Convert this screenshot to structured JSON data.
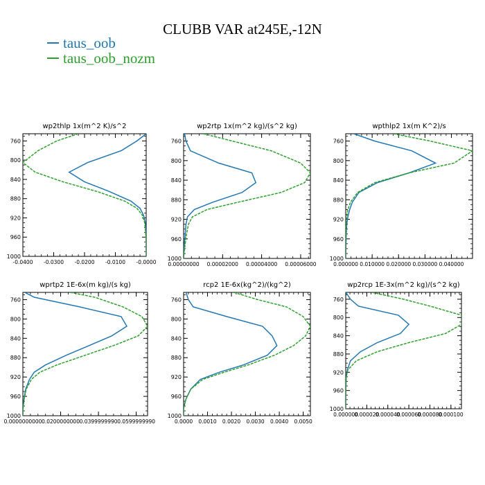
{
  "title": "CLUBB VAR at245E,-12N",
  "legend": [
    {
      "name": "taus_oob",
      "color": "#2277b3"
    },
    {
      "name": "taus_oob_nozm",
      "color": "#2ca02c"
    }
  ],
  "chart_data": [
    {
      "type": "line",
      "title": "wp2thlp   1x(m^2 K)/s^2",
      "ylim": [
        1000,
        745
      ],
      "yticks": [
        "760",
        "800",
        "840",
        "880",
        "920",
        "960",
        "1000"
      ],
      "xlim": [
        -0.04,
        0.0
      ],
      "xticks": [
        -0.04,
        -0.03,
        -0.02,
        -0.01,
        0.0
      ],
      "xticklabels": [
        "-0.0400",
        "-0.0300",
        "-0.0200",
        "-0.0100",
        "-0.0000"
      ],
      "series": [
        {
          "name": "taus_oob",
          "y": [
            745,
            760,
            780,
            805,
            825,
            845,
            865,
            885,
            900,
            915,
            930,
            950,
            970,
            990,
            1000
          ],
          "x": [
            0.0,
            -0.003,
            -0.008,
            -0.019,
            -0.025,
            -0.02,
            -0.012,
            -0.005,
            -0.002,
            -0.0008,
            -0.0003,
            -0.0001,
            0,
            0,
            0
          ]
        },
        {
          "name": "taus_oob_nozm",
          "y": [
            745,
            760,
            780,
            805,
            825,
            845,
            865,
            885,
            900,
            915,
            930,
            950,
            970,
            990,
            1000
          ],
          "x": [
            -0.022,
            -0.029,
            -0.035,
            -0.04,
            -0.036,
            -0.027,
            -0.016,
            -0.007,
            -0.003,
            -0.0012,
            -0.0005,
            -0.0002,
            0,
            0,
            0
          ]
        }
      ]
    },
    {
      "type": "line",
      "title": "wp2rtp   1x(m^2 kg)/(s^2 kg)",
      "ylim": [
        1000,
        745
      ],
      "yticks": [
        "760",
        "800",
        "840",
        "880",
        "920",
        "960",
        "1000"
      ],
      "xlim": [
        0.0,
        6.5e-05
      ],
      "xticks": [
        0,
        2e-05,
        4e-05,
        6e-05
      ],
      "xticklabels": [
        "0.00000000",
        "0.00002000",
        "0.00004000",
        "0.00006000"
      ],
      "series": [
        {
          "name": "taus_oob",
          "y": [
            745,
            760,
            780,
            805,
            825,
            845,
            865,
            885,
            900,
            915,
            930,
            950,
            970,
            990,
            1000
          ],
          "x": [
            5e-07,
            1.2e-06,
            3.5e-06,
            1.8e-05,
            3.5e-05,
            3.7e-05,
            3e-05,
            1.5e-05,
            5.5e-06,
            2e-06,
            1.2e-06,
            8e-07,
            4e-07,
            1e-07,
            0
          ]
        },
        {
          "name": "taus_oob_nozm",
          "y": [
            745,
            760,
            780,
            805,
            825,
            845,
            865,
            885,
            900,
            915,
            930,
            950,
            970,
            990,
            1000
          ],
          "x": [
            1e-05,
            2.5e-05,
            4.5e-05,
            6e-05,
            6.5e-05,
            6.2e-05,
            5e-05,
            2.8e-05,
            1.2e-05,
            4.5e-06,
            2.5e-06,
            1.5e-06,
            8e-07,
            2e-07,
            0
          ]
        }
      ]
    },
    {
      "type": "line",
      "title": "wpthlp2   1x(m K^2)/s",
      "ylim": [
        1000,
        745
      ],
      "yticks": [
        "760",
        "800",
        "840",
        "880",
        "920",
        "960",
        "1000"
      ],
      "xlim": [
        0.0,
        0.048
      ],
      "xticks": [
        0,
        0.01,
        0.02,
        0.03,
        0.04
      ],
      "xticklabels": [
        "0.000000",
        "0.010000",
        "0.020000",
        "0.030000",
        "0.040000"
      ],
      "series": [
        {
          "name": "taus_oob",
          "y": [
            745,
            760,
            780,
            805,
            825,
            845,
            865,
            885,
            900,
            915,
            930,
            950,
            970,
            990,
            1000
          ],
          "x": [
            0.003,
            0.011,
            0.025,
            0.034,
            0.024,
            0.012,
            0.005,
            0.0025,
            0.0015,
            0.0008,
            0.0004,
            0.0002,
            0.0001,
            0,
            0
          ]
        },
        {
          "name": "taus_oob_nozm",
          "y": [
            745,
            760,
            780,
            805,
            825,
            845,
            865,
            885,
            900,
            915,
            930,
            950,
            970,
            990,
            1000
          ],
          "x": [
            0.018,
            0.032,
            0.048,
            0.041,
            0.024,
            0.011,
            0.0045,
            0.0018,
            0.0008,
            0.0004,
            0.0002,
            0.0001,
            0,
            0,
            0
          ]
        }
      ]
    },
    {
      "type": "line",
      "title": "wprtp2   1E-6x(m kg)/(s kg)",
      "ylim": [
        1000,
        745
      ],
      "yticks": [
        "760",
        "800",
        "840",
        "880",
        "920",
        "960",
        "1000"
      ],
      "xlim": [
        0.0,
        0.066
      ],
      "xticks": [
        0,
        0.02,
        0.04,
        0.06
      ],
      "xticklabels": [
        "0.0000000000",
        "0.0200000000",
        "0.0399999990",
        "0.0599999990"
      ],
      "series": [
        {
          "name": "taus_oob",
          "y": [
            745,
            755,
            775,
            795,
            815,
            835,
            855,
            875,
            895,
            910,
            925,
            945,
            965,
            985,
            1000
          ],
          "x": [
            0.001,
            0.006,
            0.03,
            0.052,
            0.055,
            0.047,
            0.035,
            0.023,
            0.012,
            0.006,
            0.0035,
            0.0015,
            0.0006,
            0.0001,
            0
          ]
        },
        {
          "name": "taus_oob_nozm",
          "y": [
            745,
            755,
            775,
            795,
            815,
            835,
            855,
            875,
            895,
            910,
            925,
            945,
            965,
            985,
            1000
          ],
          "x": [
            0.025,
            0.038,
            0.053,
            0.063,
            0.066,
            0.061,
            0.048,
            0.033,
            0.018,
            0.009,
            0.0045,
            0.0018,
            0.0007,
            0.0001,
            0
          ]
        }
      ]
    },
    {
      "type": "line",
      "title": "rcp2   1E-6x(kg^2)/(kg^2)",
      "ylim": [
        1000,
        745
      ],
      "yticks": [
        "760",
        "800",
        "840",
        "880",
        "920",
        "960",
        "1000"
      ],
      "xlim": [
        0.0,
        0.0053
      ],
      "xticks": [
        0,
        0.001,
        0.002,
        0.003,
        0.004,
        0.005
      ],
      "xticklabels": [
        "0.0000",
        "0.0010",
        "0.0020",
        "0.0030",
        "0.0040",
        "0.0050"
      ],
      "series": [
        {
          "name": "taus_oob",
          "y": [
            745,
            760,
            775,
            795,
            815,
            835,
            855,
            875,
            895,
            910,
            925,
            945,
            965,
            985,
            1000
          ],
          "x": [
            0.0001,
            0.0002,
            0.0004,
            0.0018,
            0.0033,
            0.0037,
            0.0039,
            0.0035,
            0.0025,
            0.0015,
            0.0007,
            0.0003,
            0.0001,
            0,
            0
          ]
        },
        {
          "name": "taus_oob_nozm",
          "y": [
            745,
            760,
            775,
            795,
            815,
            835,
            855,
            875,
            895,
            910,
            925,
            945,
            965,
            985,
            1000
          ],
          "x": [
            0.0021,
            0.0031,
            0.0043,
            0.005,
            0.0053,
            0.0051,
            0.0046,
            0.0038,
            0.0027,
            0.0017,
            0.0008,
            0.0003,
            0.0001,
            0,
            0
          ]
        }
      ]
    },
    {
      "type": "line",
      "title": "wp2rcp   1E-3x(m^2 kg)/(s^2 kg)",
      "ylim": [
        1000,
        745
      ],
      "yticks": [
        "760",
        "800",
        "840",
        "880",
        "920",
        "960",
        "1000"
      ],
      "xlim": [
        0.0,
        0.00011
      ],
      "xticks": [
        0,
        2e-05,
        4e-05,
        6e-05,
        8e-05,
        0.0001
      ],
      "xticklabels": [
        "0.000000",
        "0.000020",
        "0.000040",
        "0.000060",
        "0.000080",
        "0.000100"
      ],
      "series": [
        {
          "name": "taus_oob",
          "y": [
            745,
            760,
            775,
            795,
            815,
            835,
            855,
            875,
            895,
            915,
            930,
            950,
            970,
            990,
            1000
          ],
          "x": [
            2e-07,
            4.5e-06,
            1.2e-05,
            5e-05,
            6e-05,
            5.2e-05,
            3e-05,
            1.4e-05,
            4.5e-06,
            1.5e-06,
            5e-07,
            2e-07,
            0,
            0,
            0
          ]
        },
        {
          "name": "taus_oob_nozm",
          "y": [
            745,
            760,
            775,
            795,
            815,
            835,
            855,
            875,
            895,
            915,
            930,
            950,
            970,
            990,
            1000
          ],
          "x": [
            2.5e-05,
            5.5e-05,
            8e-05,
            0.00011,
            0.00011,
            9.5e-05,
            6e-05,
            3e-05,
            1e-05,
            2e-06,
            5e-07,
            2e-07,
            0,
            0,
            0
          ]
        }
      ]
    }
  ]
}
